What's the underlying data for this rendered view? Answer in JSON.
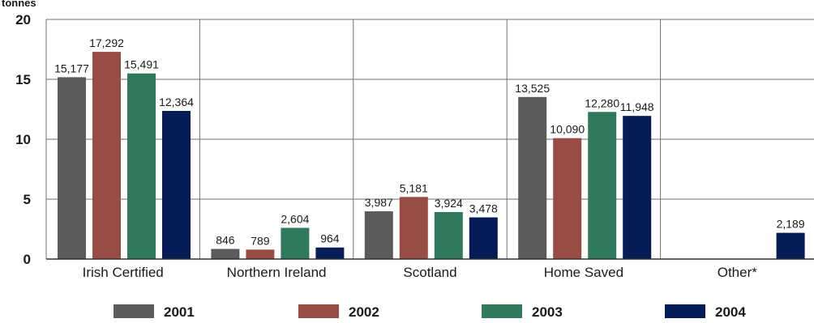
{
  "chart_data": {
    "type": "bar",
    "ylabel": "tonnes",
    "ylim": [
      0,
      20
    ],
    "yticks": [
      "0",
      "5",
      "10",
      "15",
      "20"
    ],
    "categories": [
      "Irish Certified",
      "Northern Ireland",
      "Scotland",
      "Home Saved",
      "Other*"
    ],
    "series": [
      {
        "name": "2001",
        "color": "#5b5b5d",
        "values": [
          15.177,
          0.846,
          3.987,
          13.525,
          null
        ],
        "labels": [
          "15,177",
          "846",
          "3,987",
          "13,525",
          ""
        ]
      },
      {
        "name": "2002",
        "color": "#984c43",
        "values": [
          17.292,
          0.789,
          5.181,
          10.09,
          null
        ],
        "labels": [
          "17,292",
          "789",
          "5,181",
          "10,090",
          ""
        ]
      },
      {
        "name": "2003",
        "color": "#2f7a5c",
        "values": [
          15.491,
          2.604,
          3.924,
          12.28,
          null
        ],
        "labels": [
          "15,491",
          "2,604",
          "3,924",
          "12,280",
          ""
        ]
      },
      {
        "name": "2004",
        "color": "#061c56",
        "values": [
          12.364,
          0.964,
          3.478,
          11.948,
          2.189
        ],
        "labels": [
          "12,364",
          "964",
          "3,478",
          "11,948",
          "2,189"
        ]
      }
    ],
    "grid": true,
    "legend_position": "bottom"
  }
}
